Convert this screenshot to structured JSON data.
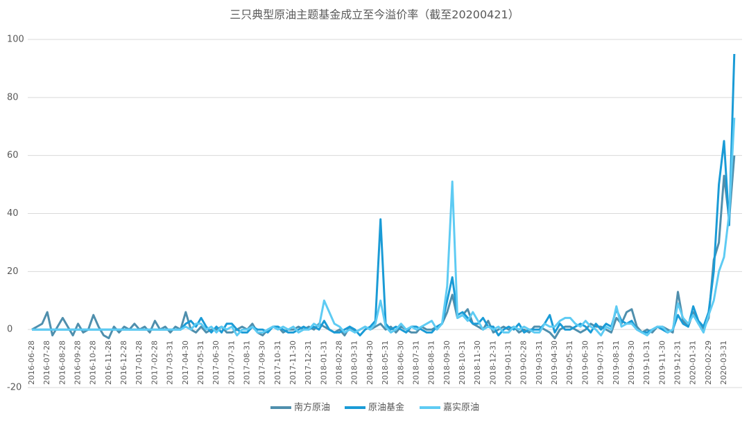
{
  "chart_data": {
    "type": "line",
    "title": "三只典型原油主题基金成立至今溢价率（截至20200421）",
    "categories": [
      "2016-06-28",
      null,
      null,
      "2016-07-28",
      null,
      null,
      "2016-08-28",
      null,
      null,
      "2016-09-28",
      null,
      null,
      "2016-10-28",
      null,
      null,
      "2016-11-28",
      null,
      null,
      "2016-12-28",
      null,
      null,
      "2017-01-28",
      null,
      null,
      "2017-02-28",
      null,
      null,
      "2017-03-31",
      null,
      null,
      "2017-04-30",
      null,
      null,
      "2017-05-31",
      null,
      null,
      "2017-06-30",
      null,
      null,
      "2017-07-31",
      null,
      null,
      "2017-08-31",
      null,
      null,
      "2017-09-30",
      null,
      null,
      "2017-10-31",
      null,
      null,
      "2017-11-30",
      null,
      null,
      "2017-12-31",
      null,
      null,
      "2018-01-31",
      null,
      null,
      "2018-02-28",
      null,
      null,
      "2018-03-31",
      null,
      null,
      "2018-04-30",
      null,
      null,
      "2018-05-31",
      null,
      null,
      "2018-06-30",
      null,
      null,
      "2018-07-31",
      null,
      null,
      "2018-08-31",
      null,
      null,
      "2018-09-30",
      null,
      null,
      "2018-10-31",
      null,
      null,
      "2018-11-30",
      null,
      null,
      "2018-12-31",
      null,
      null,
      "2019-01-31",
      null,
      null,
      "2019-02-28",
      null,
      null,
      "2019-03-31",
      null,
      null,
      "2019-04-30",
      null,
      null,
      "2019-05-31",
      null,
      null,
      "2019-06-30",
      null,
      null,
      "2019-07-31",
      null,
      null,
      "2019-08-31",
      null,
      null,
      "2019-09-30",
      null,
      null,
      "2019-10-31",
      null,
      null,
      "2019-11-30",
      null,
      null,
      "2019-12-31",
      null,
      null,
      "2020-01-31",
      null,
      null,
      "2020-02-29",
      null,
      null,
      "2020-03-31",
      null,
      null
    ],
    "series": [
      {
        "name": "南方原油",
        "color": "#4f8fad",
        "values": [
          0,
          1,
          2,
          6,
          -2,
          1,
          4,
          1,
          -2,
          2,
          -1,
          0,
          5,
          1,
          -2,
          -3,
          1,
          -1,
          1,
          0,
          2,
          0,
          1,
          -1,
          3,
          0,
          1,
          -1,
          1,
          0,
          6,
          0,
          -1,
          1,
          -1,
          0,
          0,
          1,
          -1,
          -1,
          0,
          1,
          0,
          2,
          -1,
          -2,
          0,
          1,
          1,
          -1,
          0,
          0,
          1,
          0,
          1,
          0,
          2,
          1,
          0,
          -1,
          0,
          -2,
          1,
          -1,
          0,
          1,
          0,
          1,
          2,
          0,
          1,
          -1,
          1,
          0,
          -1,
          -1,
          1,
          0,
          0,
          1,
          2,
          6,
          12,
          4,
          5,
          7,
          2,
          1,
          0,
          3,
          -1,
          0,
          1,
          0,
          1,
          -1,
          0,
          -1,
          1,
          1,
          0,
          -1,
          -3,
          0,
          1,
          1,
          0,
          -1,
          0,
          2,
          1,
          1,
          0,
          -1,
          4,
          2,
          6,
          7,
          1,
          -1,
          0,
          -1,
          1,
          1,
          0,
          -1,
          13,
          3,
          1,
          6,
          2,
          0,
          4,
          24,
          30,
          53,
          38,
          60
        ]
      },
      {
        "name": "原油基金",
        "color": "#1a9bd6",
        "values": [
          0,
          0,
          0,
          0,
          0,
          0,
          0,
          0,
          0,
          0,
          0,
          0,
          0,
          0,
          0,
          0,
          0,
          0,
          0,
          0,
          0,
          0,
          0,
          0,
          0,
          0,
          0,
          0,
          0,
          0,
          2,
          3,
          1,
          4,
          1,
          -1,
          1,
          -1,
          2,
          2,
          0,
          -1,
          -1,
          1,
          0,
          0,
          -1,
          1,
          1,
          0,
          -1,
          -1,
          0,
          1,
          0,
          1,
          0,
          3,
          0,
          -1,
          -1,
          0,
          1,
          0,
          -2,
          0,
          1,
          3,
          38,
          2,
          0,
          1,
          0,
          -1,
          1,
          1,
          0,
          -1,
          -1,
          1,
          2,
          10,
          18,
          5,
          6,
          4,
          2,
          2,
          4,
          1,
          1,
          -2,
          0,
          1,
          0,
          2,
          -1,
          0,
          0,
          0,
          2,
          5,
          -1,
          2,
          0,
          0,
          1,
          2,
          1,
          -1,
          2,
          0,
          2,
          1,
          7,
          3,
          2,
          3,
          0,
          -1,
          -1,
          0,
          1,
          0,
          -1,
          0,
          5,
          2,
          1,
          8,
          3,
          1,
          6,
          20,
          50,
          65,
          36,
          95
        ]
      },
      {
        "name": "嘉实原油",
        "color": "#5ecbf3",
        "values": [
          0,
          0,
          0,
          0,
          0,
          0,
          0,
          0,
          0,
          0,
          0,
          0,
          0,
          0,
          0,
          0,
          0,
          0,
          0,
          0,
          0,
          0,
          0,
          0,
          0,
          0,
          0,
          0,
          0,
          0,
          1,
          0,
          2,
          2,
          0,
          1,
          -1,
          1,
          0,
          1,
          -2,
          0,
          0,
          1,
          -1,
          -1,
          0,
          1,
          0,
          1,
          0,
          1,
          -1,
          0,
          0,
          2,
          1,
          10,
          6,
          2,
          1,
          -1,
          0,
          -1,
          0,
          1,
          0,
          2,
          10,
          1,
          -1,
          0,
          2,
          0,
          1,
          0,
          1,
          2,
          3,
          0,
          2,
          15,
          51,
          4,
          5,
          3,
          6,
          3,
          0,
          1,
          0,
          1,
          -1,
          -1,
          1,
          0,
          1,
          0,
          -1,
          -1,
          2,
          1,
          1,
          3,
          4,
          4,
          2,
          1,
          3,
          1,
          0,
          -2,
          1,
          0,
          8,
          1,
          2,
          2,
          0,
          -1,
          -2,
          0,
          1,
          1,
          -1,
          0,
          9,
          4,
          2,
          5,
          2,
          -1,
          5,
          10,
          20,
          25,
          40,
          73
        ]
      }
    ],
    "ylim": [
      -20,
      100
    ],
    "yticks": [
      -20,
      0,
      20,
      40,
      60,
      80,
      100
    ],
    "grid": true,
    "legend": "bottom"
  }
}
